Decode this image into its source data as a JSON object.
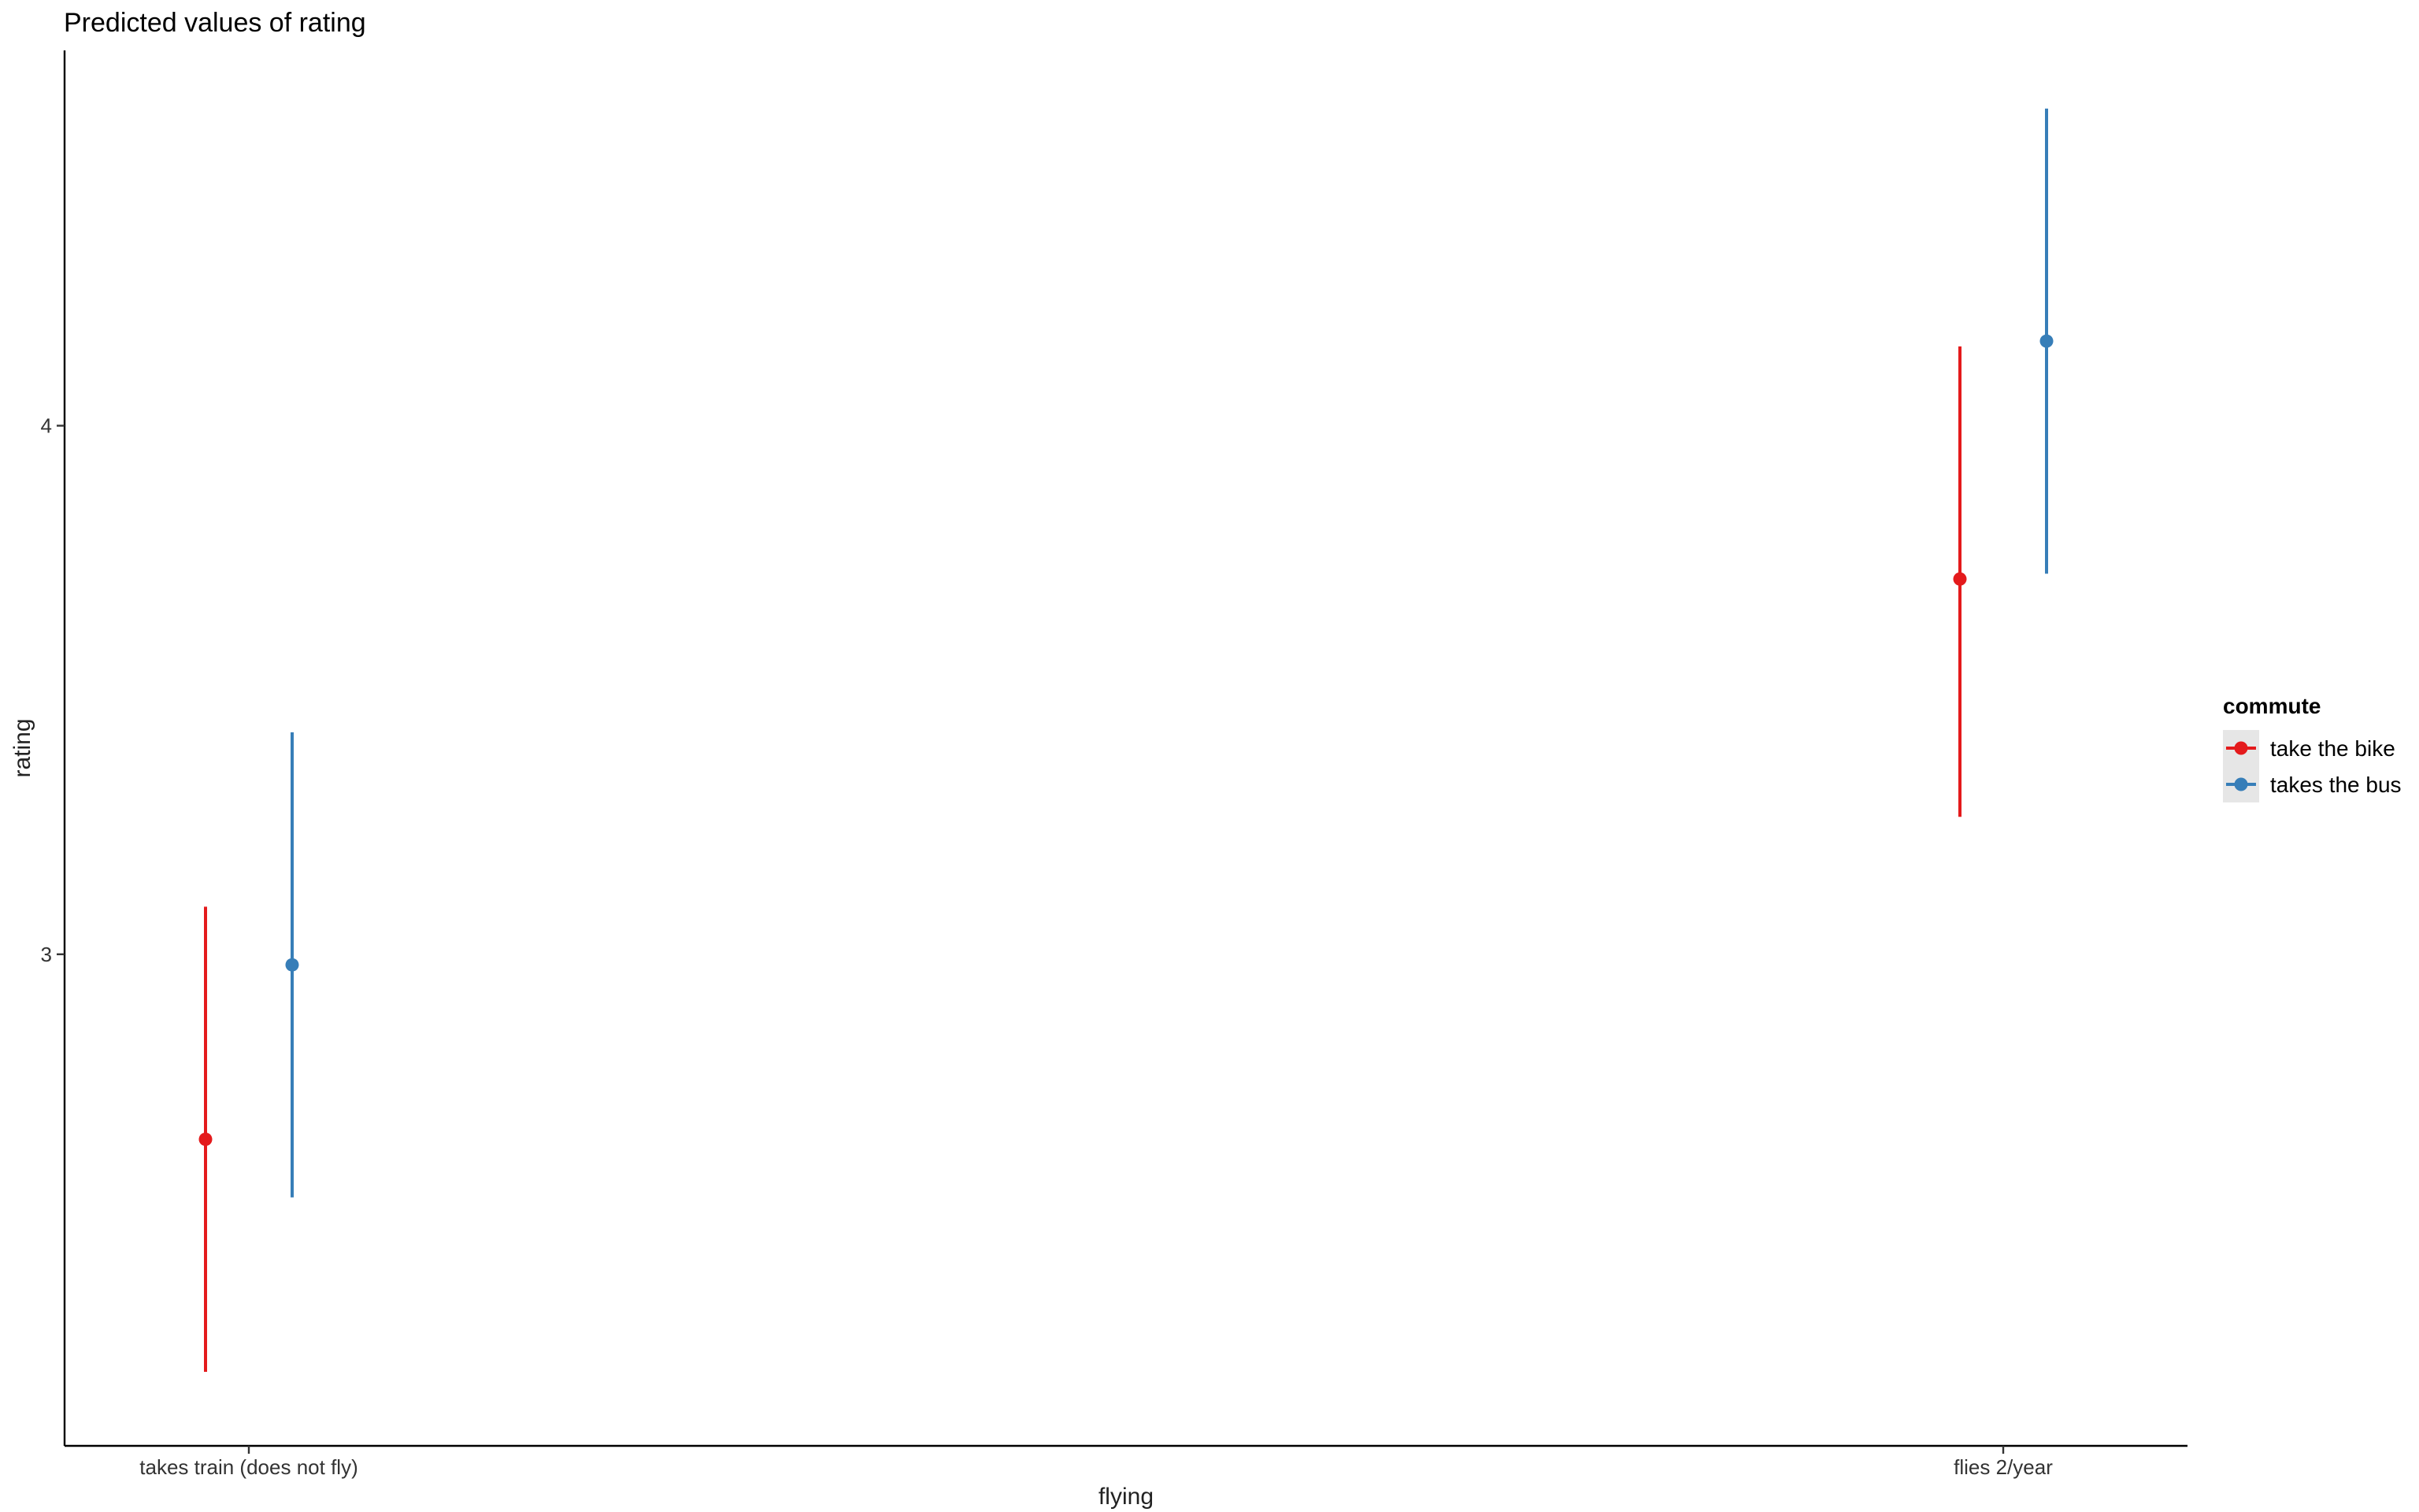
{
  "chart_data": {
    "type": "scatter",
    "title": "Predicted values of rating",
    "xlabel": "flying",
    "ylabel": "rating",
    "categories": [
      "takes train (does not fly)",
      "flies 2/year"
    ],
    "ylim": [
      2.07,
      4.71
    ],
    "yticks": [
      3,
      4
    ],
    "grid": false,
    "legend": {
      "title": "commute",
      "placement": "right"
    },
    "series": [
      {
        "name": "take the bike",
        "color": "#E41A1C",
        "values": [
          2.65,
          3.71
        ],
        "lower": [
          2.21,
          3.26
        ],
        "upper": [
          3.09,
          4.15
        ]
      },
      {
        "name": "takes the bus",
        "color": "#377EB8",
        "values": [
          2.98,
          4.16
        ],
        "lower": [
          2.54,
          3.72
        ],
        "upper": [
          3.42,
          4.6
        ]
      }
    ]
  }
}
